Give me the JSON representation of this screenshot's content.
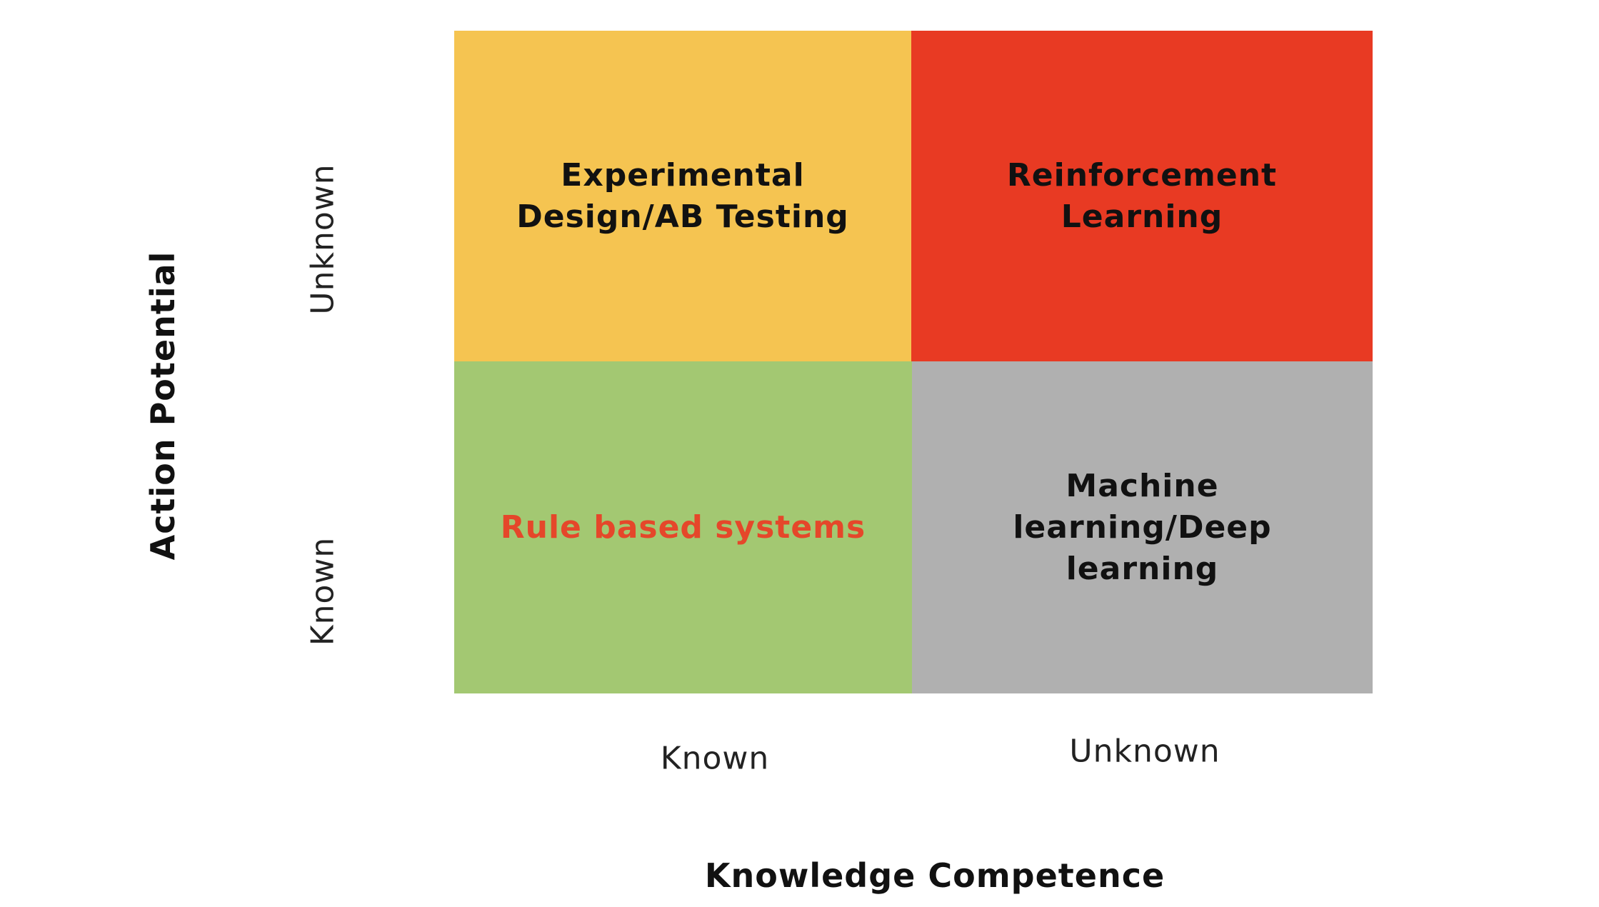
{
  "quadrants": {
    "top_left": {
      "label": "Experimental Design/AB Testing",
      "color": "#F5C451",
      "text_color": "#111111"
    },
    "top_right": {
      "label": "Reinforcement Learning",
      "color": "#E83A23",
      "text_color": "#111111"
    },
    "bottom_left": {
      "label": "Rule based systems",
      "color": "#A3C872",
      "text_color": "#E5472A"
    },
    "bottom_right": {
      "label": "Machine learning/Deep learning",
      "color": "#B0B0B0",
      "text_color": "#111111"
    }
  },
  "y_axis": {
    "title": "Action Potential",
    "ticks": {
      "top": "Unknown",
      "bottom": "Known"
    }
  },
  "x_axis": {
    "title": "Knowledge Competence",
    "ticks": {
      "left": "Known",
      "right": "Unknown"
    }
  }
}
